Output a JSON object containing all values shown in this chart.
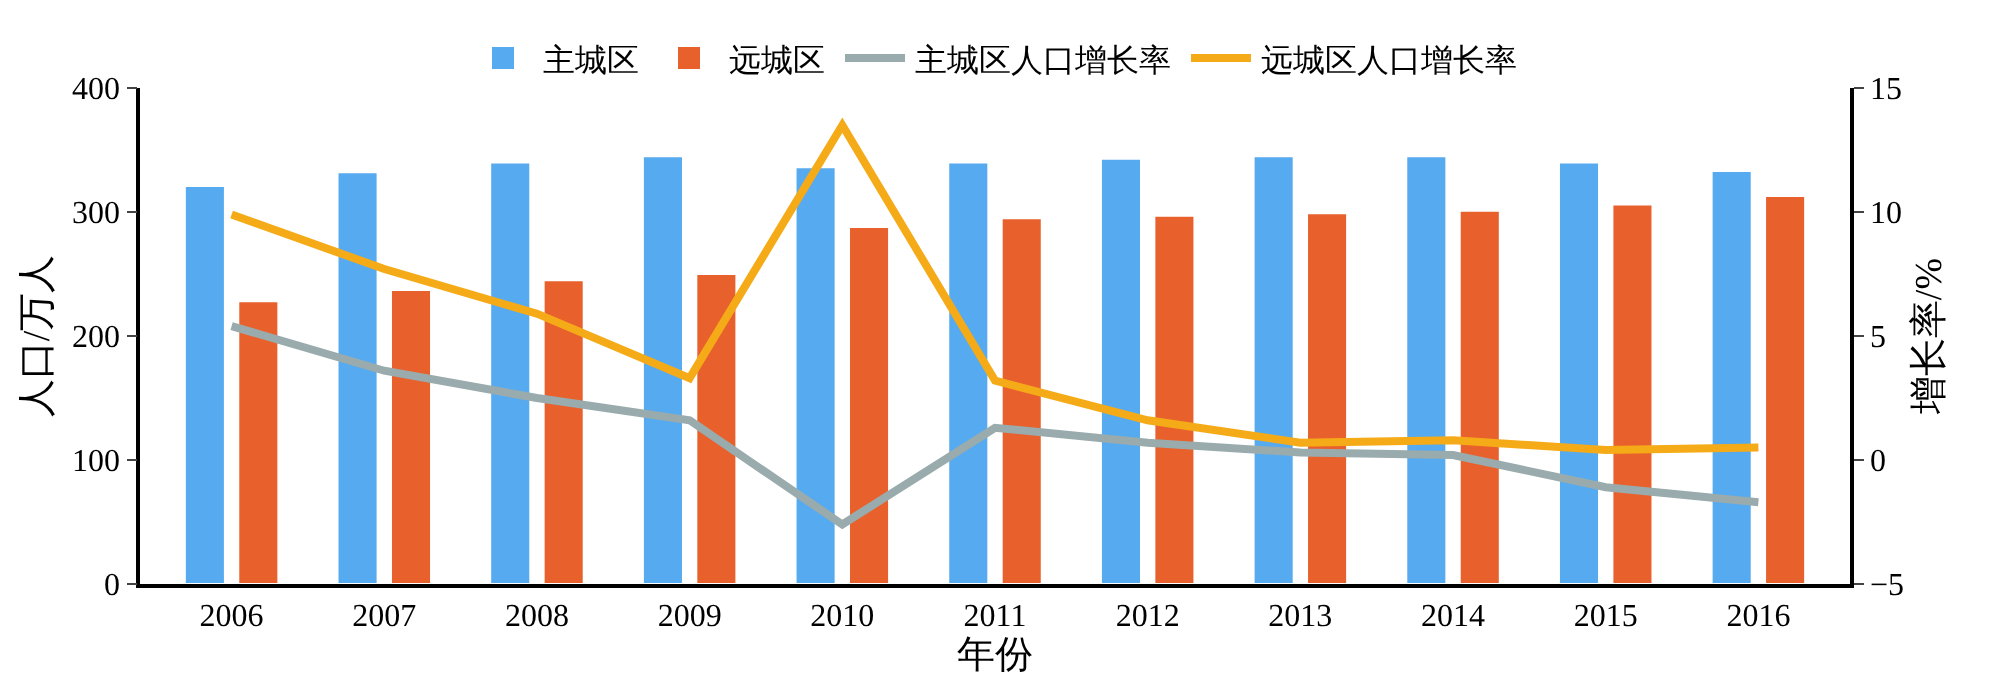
{
  "chart_data": {
    "type": "bar",
    "xlabel": "年份",
    "ylabel": "人口/万人",
    "y2label": "增长率/%",
    "categories": [
      "2006",
      "2007",
      "2008",
      "2009",
      "2010",
      "2011",
      "2012",
      "2013",
      "2014",
      "2015",
      "2016"
    ],
    "series": [
      {
        "name": "主城区",
        "color": "#55aaf0",
        "values": [
          321,
          332,
          340,
          345,
          336,
          340,
          343,
          345,
          345,
          340,
          333
        ]
      },
      {
        "name": "远城区",
        "color": "#e8602c",
        "values": [
          228,
          237,
          245,
          250,
          288,
          295,
          297,
          299,
          301,
          306,
          313
        ]
      },
      {
        "name": "主城区人口增长率",
        "type": "line",
        "axis": "y2",
        "color": "#9aabad",
        "values": [
          5.4,
          3.6,
          2.5,
          1.6,
          -2.6,
          1.3,
          0.7,
          0.3,
          0.2,
          -1.1,
          -1.7
        ]
      },
      {
        "name": "远城区人口增长率",
        "type": "line",
        "axis": "y2",
        "color": "#f5ab18",
        "values": [
          9.9,
          7.7,
          5.9,
          3.3,
          13.5,
          3.2,
          1.6,
          0.7,
          0.8,
          0.4,
          0.5
        ]
      }
    ],
    "ylim": [
      0,
      400
    ],
    "yticks": [
      0,
      100,
      200,
      300,
      400
    ],
    "y2lim": [
      -5,
      15
    ],
    "y2ticks": [
      {
        "value": -5,
        "label": "−5"
      },
      0,
      5,
      10,
      15
    ],
    "legend": "top",
    "marker": "none"
  }
}
